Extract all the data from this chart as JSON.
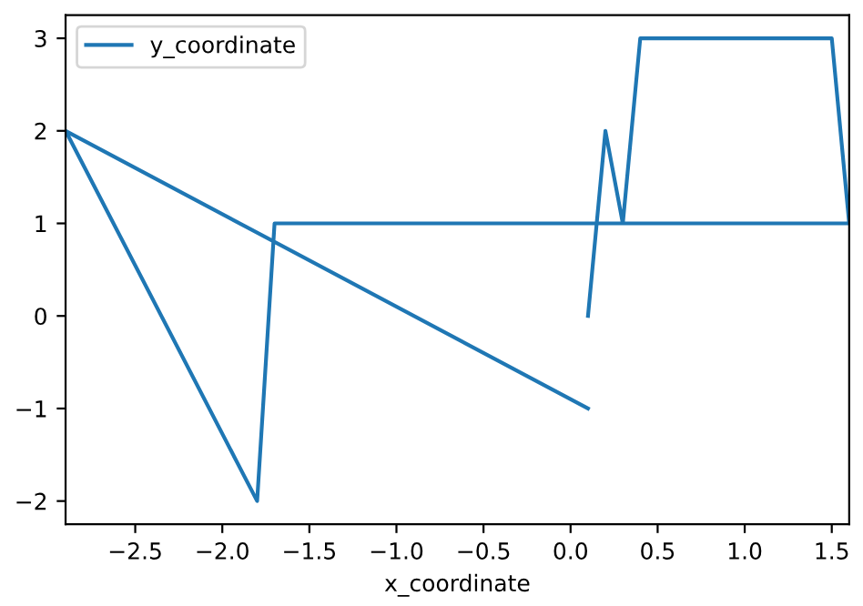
{
  "chart_data": {
    "type": "line",
    "xlabel": "x_coordinate",
    "x": [
      0.1,
      0.2,
      0.3,
      0.4,
      1.5,
      1.6,
      -1.7,
      -1.8,
      -2.9,
      0.1
    ],
    "series": [
      {
        "name": "y_coordinate",
        "color": "#1f77b4",
        "values": [
          0,
          2,
          1,
          3,
          3,
          1,
          1,
          -2,
          2,
          -1
        ]
      }
    ],
    "xlim": [
      -2.9,
      1.6
    ],
    "xticks": [
      {
        "value": -2.5,
        "label": "−2.5"
      },
      {
        "value": -2,
        "label": "−2.0"
      },
      {
        "value": -1.5,
        "label": "−1.5"
      },
      {
        "value": -1,
        "label": "−1.0"
      },
      {
        "value": -0.5,
        "label": "−0.5"
      },
      {
        "value": 0,
        "label": "0.0"
      },
      {
        "value": 0.5,
        "label": "0.5"
      },
      {
        "value": 1,
        "label": "1.0"
      },
      {
        "value": 1.5,
        "label": "1.5"
      }
    ],
    "ylim": [
      -2.25,
      3.25
    ],
    "yticks": [
      {
        "value": -2,
        "label": "−2"
      },
      {
        "value": -1,
        "label": "−1"
      },
      0,
      1,
      2,
      3
    ],
    "legend": "top left",
    "grid": false
  }
}
